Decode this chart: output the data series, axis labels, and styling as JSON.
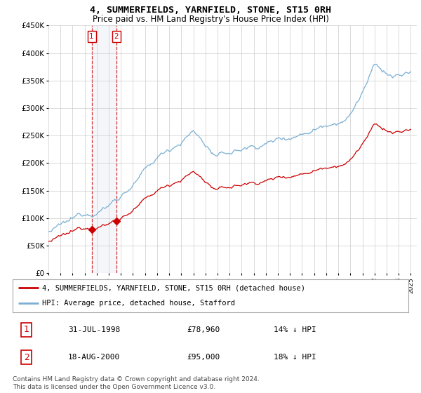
{
  "title": "4, SUMMERFIELDS, YARNFIELD, STONE, ST15 0RH",
  "subtitle": "Price paid vs. HM Land Registry's House Price Index (HPI)",
  "ylim": [
    0,
    450000
  ],
  "yticks": [
    0,
    50000,
    100000,
    150000,
    200000,
    250000,
    300000,
    350000,
    400000,
    450000
  ],
  "ytick_labels": [
    "£0",
    "£50K",
    "£100K",
    "£150K",
    "£200K",
    "£250K",
    "£300K",
    "£350K",
    "£400K",
    "£450K"
  ],
  "legend_entries": [
    "4, SUMMERFIELDS, YARNFIELD, STONE, ST15 0RH (detached house)",
    "HPI: Average price, detached house, Stafford"
  ],
  "hpi_color": "#7ab0d4",
  "price_color": "#cc0000",
  "sale1_date_label": "31-JUL-1998",
  "sale1_price_label": "£78,960",
  "sale1_hpi_label": "14% ↓ HPI",
  "sale2_date_label": "18-AUG-2000",
  "sale2_price_label": "£95,000",
  "sale2_hpi_label": "18% ↓ HPI",
  "footnote": "Contains HM Land Registry data © Crown copyright and database right 2024.\nThis data is licensed under the Open Government Licence v3.0.",
  "sale1_x": 1998.58,
  "sale1_y": 78960,
  "sale2_x": 2000.63,
  "sale2_y": 95000,
  "background_color": "#ffffff",
  "grid_color": "#cccccc",
  "xlim_start": 1995,
  "xlim_end": 2025.5
}
